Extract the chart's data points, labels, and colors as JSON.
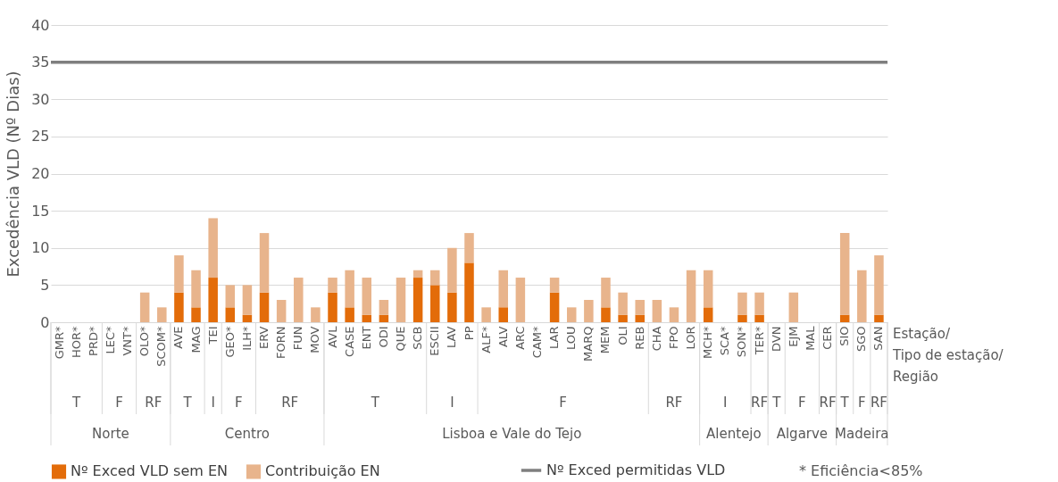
{
  "chart_data": {
    "type": "bar",
    "stacked": true,
    "ylabel": "Excedência VLD (Nº Dias)",
    "xlabel": "Estação/\nTipo de estação/\nRegião",
    "categories": [
      "GMR*",
      "HOR*",
      "PRD*",
      "LEC*",
      "VNT*",
      "OLO*",
      "SCOM*",
      "AVE",
      "MAG",
      "TEI",
      "GEO*",
      "ILH*",
      "ERV",
      "FORN",
      "FUN",
      "MOV",
      "AVL",
      "CASE",
      "ENT",
      "ODI",
      "QUE",
      "SCB",
      "ESCII",
      "LAV",
      "PP",
      "ALF*",
      "ALV",
      "ARC",
      "CAM*",
      "LAR",
      "LOU",
      "MARQ",
      "MEM",
      "OLI",
      "REB",
      "CHA",
      "FPO",
      "LOR",
      "MCH*",
      "SCA*",
      "SON*",
      "TER*",
      "DVN",
      "EJM",
      "MAL",
      "CER",
      "SIO",
      "SGO",
      "SAN"
    ],
    "series": [
      {
        "name": "Nº Exced VLD sem EN",
        "color": "#e36c09",
        "values": [
          0,
          0,
          0,
          0,
          0,
          0,
          0,
          4,
          2,
          6,
          2,
          1,
          4,
          0,
          0,
          0,
          4,
          2,
          1,
          1,
          0,
          6,
          5,
          4,
          8,
          0,
          2,
          0,
          0,
          4,
          0,
          0,
          2,
          1,
          1,
          0,
          0,
          0,
          2,
          0,
          1,
          1,
          0,
          0,
          0,
          0,
          1,
          0,
          1
        ]
      },
      {
        "name": "Contribuição EN",
        "color": "#e8b48c",
        "values": [
          0,
          0,
          0,
          0,
          0,
          4,
          2,
          5,
          5,
          8,
          3,
          4,
          8,
          3,
          6,
          2,
          2,
          5,
          5,
          2,
          6,
          1,
          2,
          6,
          4,
          2,
          5,
          6,
          0,
          2,
          2,
          3,
          4,
          3,
          2,
          3,
          2,
          7,
          5,
          0,
          3,
          3,
          0,
          4,
          0,
          0,
          11,
          7,
          8
        ]
      }
    ],
    "ylim": [
      0,
      40
    ],
    "yticks": [
      0,
      5,
      10,
      15,
      20,
      25,
      30,
      35,
      40
    ],
    "grid": "y",
    "legend": "bottom",
    "ref_lines": [
      {
        "axis": "y",
        "value": 35,
        "label": "Nº Exced permitidas VLD",
        "color": "#7f7f7f"
      }
    ],
    "annotations": [
      "T",
      "F",
      "RF",
      "T",
      "I",
      "F",
      "RF",
      "T",
      "I",
      "F",
      "RF",
      "I",
      "RF",
      "T",
      "F",
      "RF",
      "T",
      "F",
      "RF",
      "Norte",
      "Centro",
      "Lisboa e Vale do Tejo",
      "Alentejo",
      "Algarve",
      "Madeira",
      "* Eficiência<85%"
    ]
  }
}
